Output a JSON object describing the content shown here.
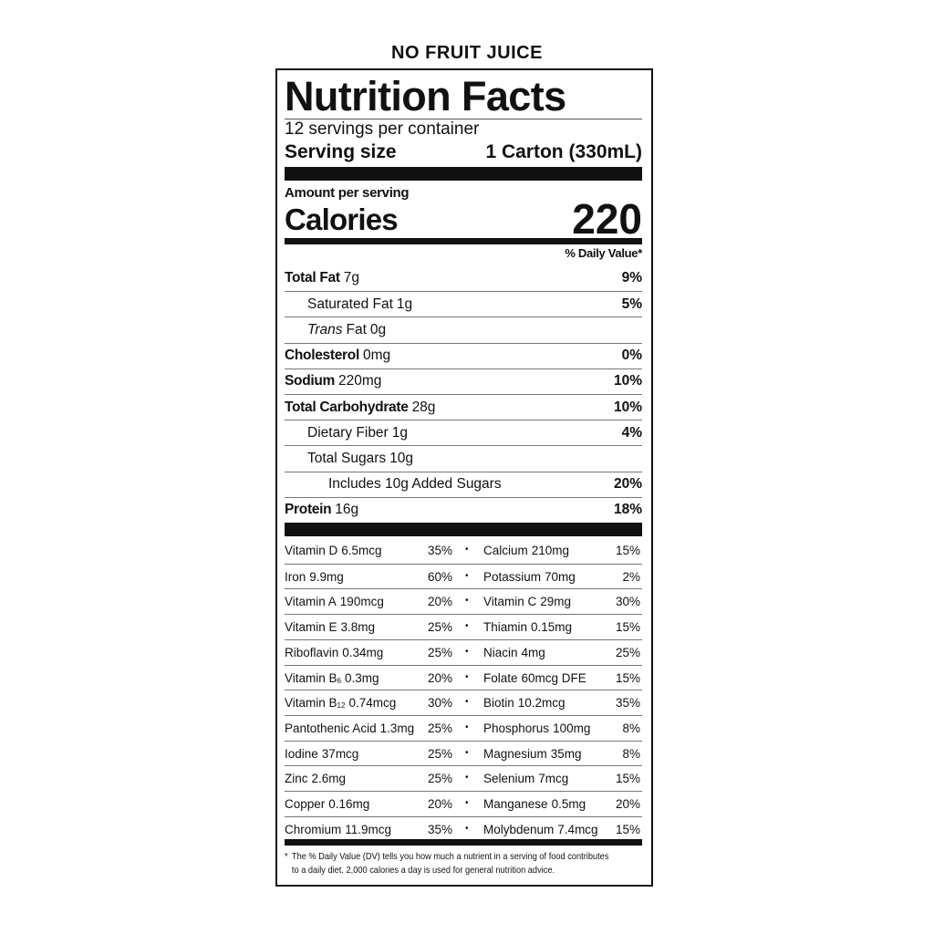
{
  "header": "NO FRUIT JUICE",
  "title": "Nutrition Facts",
  "servings": "12 servings per container",
  "serving_size": {
    "label": "Serving size",
    "value": "1 Carton (330mL)"
  },
  "amount_per_serving": "Amount per serving",
  "calories": {
    "label": "Calories",
    "value": "220"
  },
  "daily_value_header": "% Daily Value*",
  "nutrients": [
    {
      "name": "Total Fat",
      "amount": "7g",
      "dv": "9%",
      "sub": [
        {
          "name": "Saturated Fat",
          "amount": "1g",
          "dv": "5%"
        },
        {
          "name_italic": "Trans",
          "name": "Fat",
          "amount": "0g"
        }
      ]
    },
    {
      "name": "Cholesterol",
      "amount": "0mg",
      "dv": "0%"
    },
    {
      "name": "Sodium",
      "amount": "220mg",
      "dv": "10%"
    },
    {
      "name": "Total Carbohydrate",
      "amount": "28g",
      "dv": "10%",
      "sub": [
        {
          "name": "Dietary Fiber",
          "amount": "1g",
          "dv": "4%"
        },
        {
          "name": "Total Sugars",
          "amount": "10g",
          "sub": [
            {
              "name": "Includes 10g Added Sugars",
              "dv": "20%"
            }
          ]
        }
      ]
    },
    {
      "name": "Protein",
      "amount": "16g",
      "dv": "18%"
    }
  ],
  "vitamins": [
    [
      {
        "name": "Vitamin D",
        "amount": "6.5mcg",
        "dv": "35%"
      },
      {
        "name": "Calcium",
        "amount": "210mg",
        "dv": "15%"
      }
    ],
    [
      {
        "name": "Iron",
        "amount": "9.9mg",
        "dv": "60%"
      },
      {
        "name": "Potassium",
        "amount": "70mg",
        "dv": "2%"
      }
    ],
    [
      {
        "name": "Vitamin A",
        "amount": "190mcg",
        "dv": "20%"
      },
      {
        "name": "Vitamin C",
        "amount": "29mg",
        "dv": "30%"
      }
    ],
    [
      {
        "name": "Vitamin E",
        "amount": "3.8mg",
        "dv": "25%"
      },
      {
        "name": "Thiamin",
        "amount": "0.15mg",
        "dv": "15%"
      }
    ],
    [
      {
        "name": "Riboflavin",
        "amount": "0.34mg",
        "dv": "25%"
      },
      {
        "name": "Niacin",
        "amount": "4mg",
        "dv": "25%"
      }
    ],
    [
      {
        "name": "Vitamin B",
        "subscript": "6",
        "amount": "0.3mg",
        "dv": "20%"
      },
      {
        "name": "Folate",
        "amount": "60mcg DFE",
        "dv": "15%"
      }
    ],
    [
      {
        "name": "Vitamin B",
        "subscript": "12",
        "amount": "0.74mcg",
        "dv": "30%"
      },
      {
        "name": "Biotin",
        "amount": "10.2mcg",
        "dv": "35%"
      }
    ],
    [
      {
        "name": "Pantothenic Acid",
        "amount": "1.3mg",
        "dv": "25%"
      },
      {
        "name": "Phosphorus",
        "amount": "100mg",
        "dv": "8%"
      }
    ],
    [
      {
        "name": "Iodine",
        "amount": "37mcg",
        "dv": "25%"
      },
      {
        "name": "Magnesium",
        "amount": "35mg",
        "dv": "8%"
      }
    ],
    [
      {
        "name": "Zinc",
        "amount": "2.6mg",
        "dv": "25%"
      },
      {
        "name": "Selenium",
        "amount": "7mcg",
        "dv": "15%"
      }
    ],
    [
      {
        "name": "Copper",
        "amount": "0.16mg",
        "dv": "20%"
      },
      {
        "name": "Manganese",
        "amount": "0.5mg",
        "dv": "20%"
      }
    ],
    [
      {
        "name": "Chromium",
        "amount": "11.9mcg",
        "dv": "35%"
      },
      {
        "name": "Molybdenum",
        "amount": "7.4mcg",
        "dv": "15%"
      }
    ]
  ],
  "column_separator": "•",
  "footnote": {
    "marker": "*",
    "lines": [
      "The % Daily Value (DV) tells you how much a nutrient in a serving of food contributes",
      "to a daily diet. 2,000 calories a day is used for general nutrition advice."
    ]
  }
}
